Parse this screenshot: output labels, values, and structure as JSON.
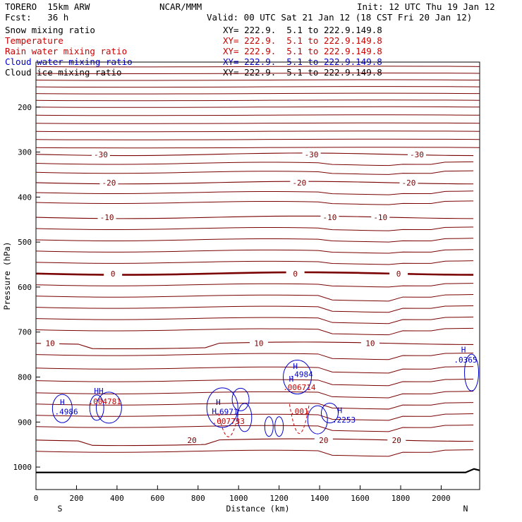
{
  "header": {
    "model": "TORERO  15km ARW",
    "center": "NCAR/MMM",
    "init": "Init: 12 UTC Thu 19 Jan 12",
    "fcst": "Fcst:   36 h",
    "valid": "Valid: 00 UTC Sat 21 Jan 12 (18 CST Fri 20 Jan 12)"
  },
  "fields": [
    {
      "name": "Snow mixing ratio",
      "xy": "XY= 222.9.  5.1 to 222.9.149.8",
      "color": "#000000"
    },
    {
      "name": "Temperature",
      "xy": "XY= 222.9.  5.1 to 222.9.149.8",
      "color": "#cc0000"
    },
    {
      "name": "Rain water mixing ratio",
      "xy": "XY= 222.9.  5.1 to 222.9.149.8",
      "color": "#cc0000"
    },
    {
      "name": "Cloud water mixing ratio",
      "xy": "XY= 222.9.  5.1 to 222.9.149.8",
      "color": "#0000cc"
    },
    {
      "name": "Cloud ice mixing ratio",
      "xy": "XY= 222.9.  5.1 to 222.9.149.8",
      "color": "#000000"
    }
  ],
  "colors": {
    "isotherm": "#7a0000",
    "temperature_label": "#7a0000",
    "rain": "#cc0000",
    "cloud_water": "#0000cc",
    "terrain": "#000000"
  },
  "chart_data": {
    "type": "cross-section contour",
    "xlabel": "Distance (km)",
    "ylabel": "Pressure (hPa)",
    "xlim": [
      0,
      2190
    ],
    "ylim": [
      1050,
      100
    ],
    "x_ticks": [
      "0",
      "200",
      "400",
      "600",
      "800",
      "1000",
      "1200",
      "1400",
      "1600",
      "1800",
      "2000"
    ],
    "y_ticks": [
      "200",
      "300",
      "400",
      "500",
      "600",
      "700",
      "800",
      "900",
      "1000"
    ],
    "y_tick_values": [
      200,
      300,
      400,
      500,
      600,
      700,
      800,
      900,
      1000
    ],
    "x_tick_values": [
      0,
      200,
      400,
      600,
      800,
      1000,
      1200,
      1400,
      1600,
      1800,
      2000
    ],
    "end_labels": {
      "left": "S",
      "right": "N"
    },
    "isotherms": [
      {
        "label": "-30",
        "p": 305,
        "label_x": [
          320,
          1360,
          1880
        ]
      },
      {
        "label": "-20",
        "p": 368,
        "label_x": [
          360,
          1300,
          1840
        ]
      },
      {
        "label": "-10",
        "p": 445,
        "label_x": [
          350,
          1450,
          1700
        ]
      },
      {
        "label": "0",
        "p": 570,
        "label_x": [
          380,
          1280,
          1790
        ],
        "bold": true
      },
      {
        "label": "10",
        "p": 725,
        "label_x": [
          70,
          1100,
          1650
        ]
      },
      {
        "label": "20",
        "p": 940,
        "label_x": [
          770,
          1420,
          1780
        ]
      }
    ],
    "rain_labels": [
      {
        "text": ".004781",
        "x": 340,
        "p": 860
      },
      {
        "text": ".006714",
        "x": 1300,
        "p": 829
      },
      {
        "text": ".001",
        "x": 1300,
        "p": 882
      },
      {
        "text": ".007733",
        "x": 950,
        "p": 904
      }
    ],
    "cloud_labels": [
      {
        "text": "H",
        "x": 130,
        "p": 862
      },
      {
        "text": ".4986",
        "x": 150,
        "p": 883
      },
      {
        "text": "HH",
        "x": 310,
        "p": 837
      },
      {
        "text": "H",
        "x": 900,
        "p": 862
      },
      {
        "text": "H",
        "x": 880,
        "p": 882
      },
      {
        "text": ".6971",
        "x": 940,
        "p": 883
      },
      {
        "text": "H",
        "x": 1280,
        "p": 782
      },
      {
        "text": ".4984",
        "x": 1310,
        "p": 800
      },
      {
        "text": "H",
        "x": 1260,
        "p": 810
      },
      {
        "text": "H",
        "x": 1500,
        "p": 880
      },
      {
        "text": ".2253",
        "x": 1520,
        "p": 901
      },
      {
        "text": "H",
        "x": 2110,
        "p": 745
      },
      {
        "text": ".0365",
        "x": 2120,
        "p": 768
      }
    ]
  }
}
